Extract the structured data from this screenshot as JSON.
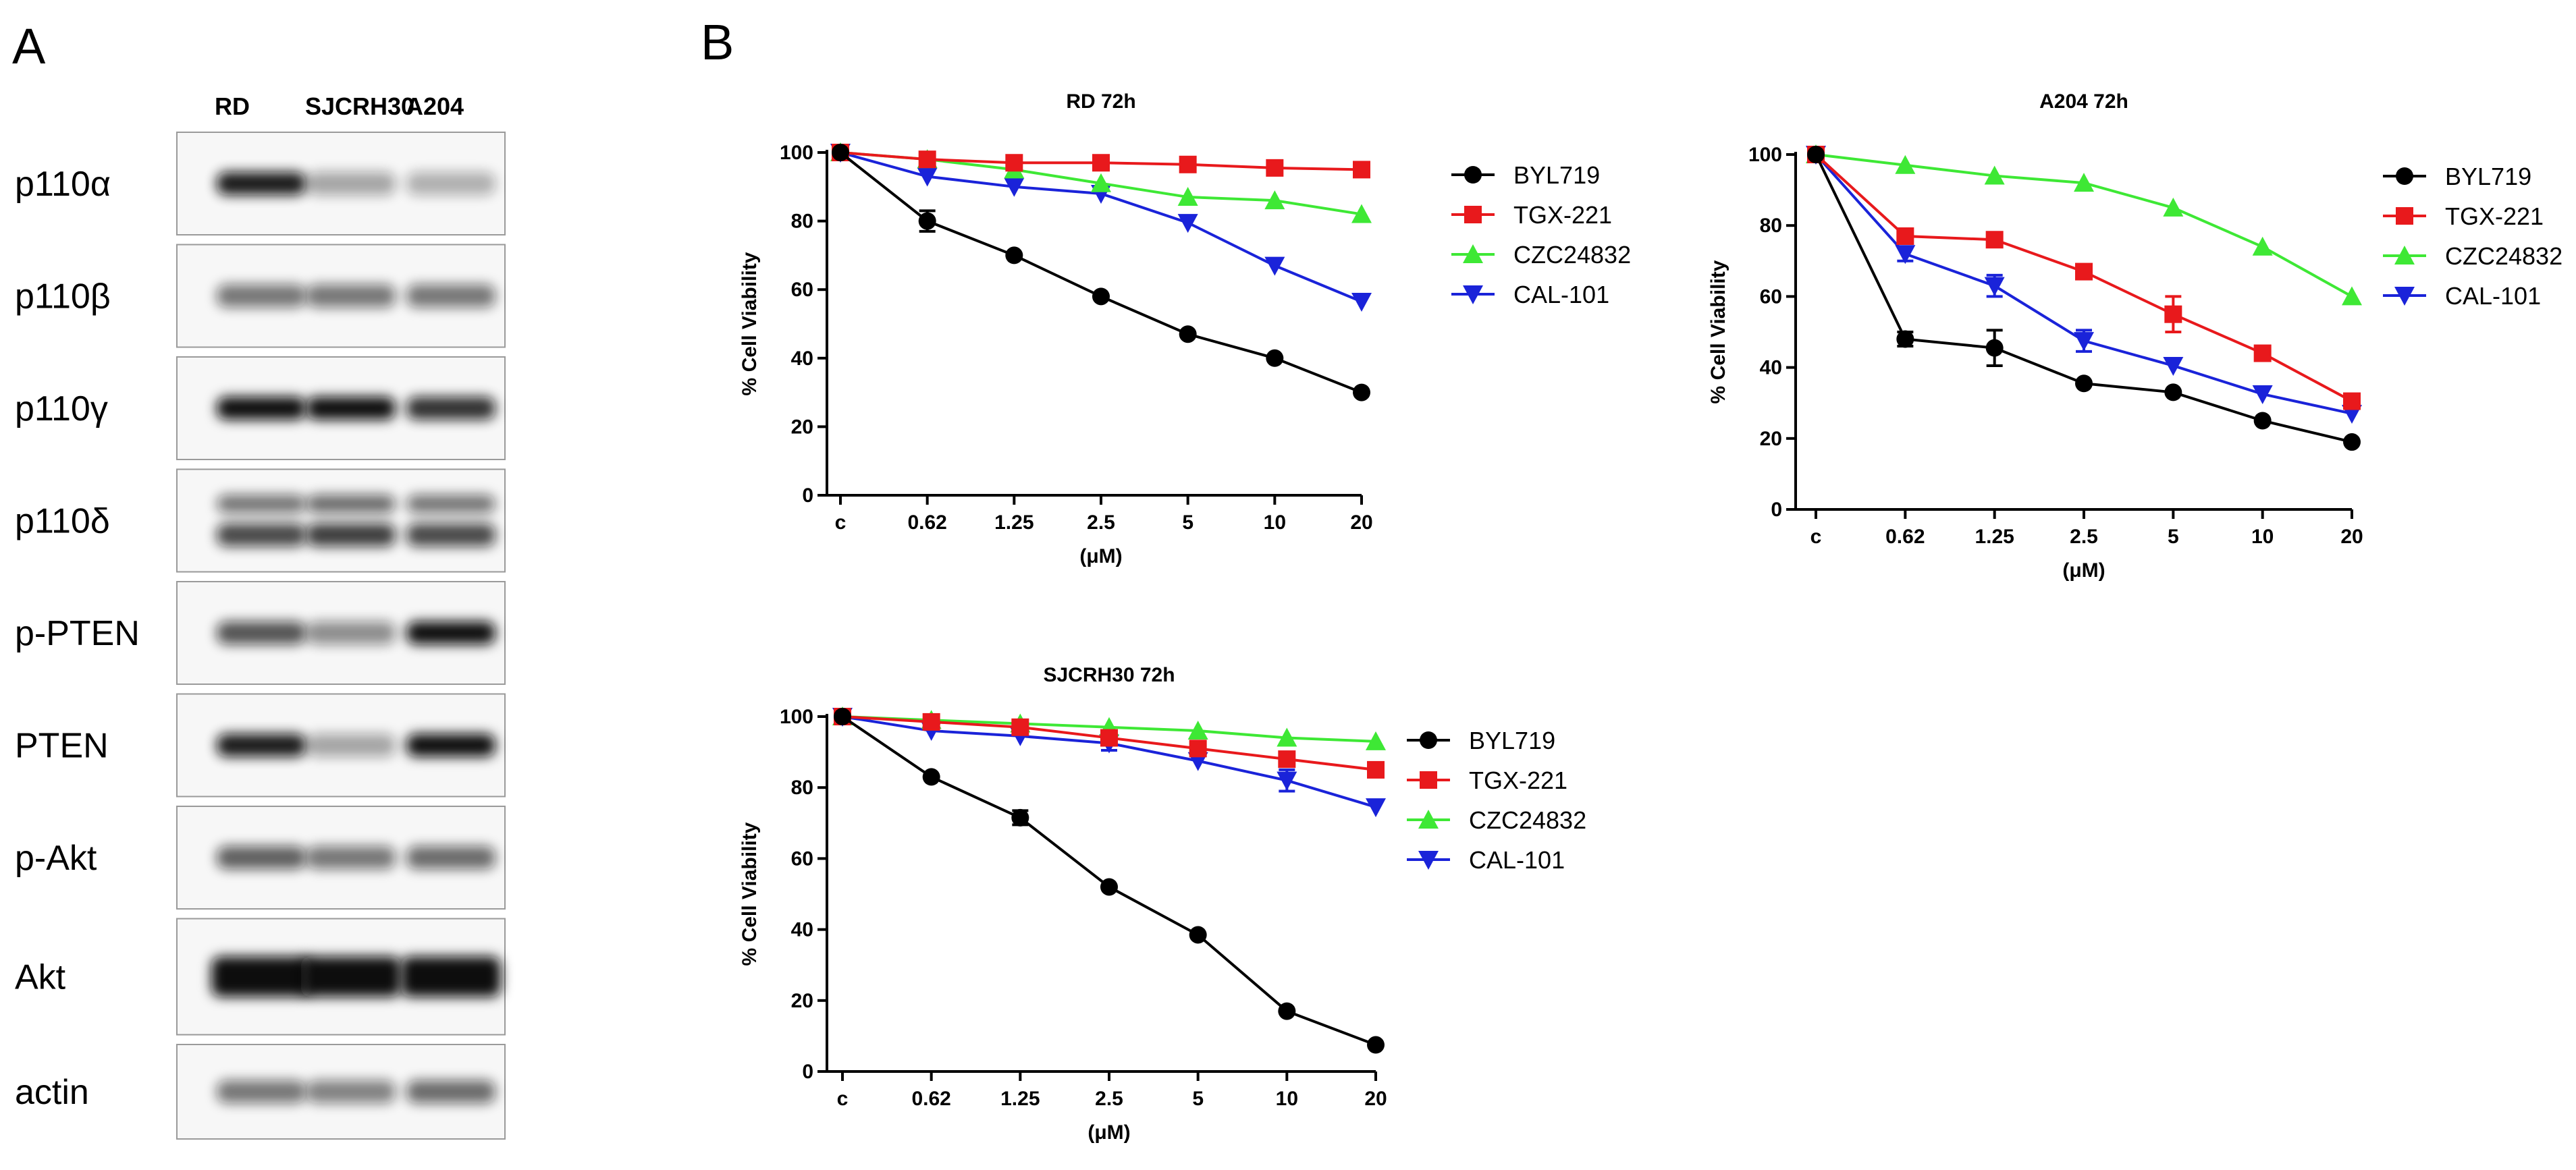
{
  "panels": {
    "a": "A",
    "b": "B"
  },
  "western_blot": {
    "lanes": [
      "RD",
      "SJCRH30",
      "A204"
    ],
    "rows": [
      {
        "label": "p110α",
        "bands": [
          0.95,
          0.35,
          0.3
        ],
        "double": false
      },
      {
        "label": "p110β",
        "bands": [
          0.55,
          0.55,
          0.55
        ],
        "double": false
      },
      {
        "label": "p110γ",
        "bands": [
          1.0,
          1.0,
          0.85
        ],
        "double": false
      },
      {
        "label": "p110δ",
        "bands": [
          0.75,
          0.8,
          0.75
        ],
        "double": true
      },
      {
        "label": "p-PTEN",
        "bands": [
          0.7,
          0.45,
          1.0
        ],
        "double": false
      },
      {
        "label": "PTEN",
        "bands": [
          0.95,
          0.35,
          1.0
        ],
        "double": false
      },
      {
        "label": "p-Akt",
        "bands": [
          0.65,
          0.55,
          0.6
        ],
        "double": false
      },
      {
        "label": "Akt",
        "bands": [
          1.0,
          1.0,
          1.0
        ],
        "double": false
      },
      {
        "label": "actin",
        "bands": [
          0.55,
          0.5,
          0.6
        ],
        "double": false
      }
    ]
  },
  "legend_entries": [
    "BYL719",
    "TGX-221",
    "CZC24832",
    "CAL-101"
  ],
  "colors": {
    "BYL719": "#000000",
    "TGX-221": "#e8191c",
    "CZC24832": "#3ee835",
    "CAL-101": "#1a23d9"
  },
  "chart_data": [
    {
      "type": "line",
      "title": "RD 72h",
      "categories": [
        "c",
        "0.62",
        "1.25",
        "2.5",
        "5",
        "10",
        "20"
      ],
      "xlabel": "(μM)",
      "ylabel": "% Cell Viability",
      "ylim": [
        0,
        100
      ],
      "yticks": [
        "0",
        "20",
        "40",
        "60",
        "80",
        "100"
      ],
      "series": [
        {
          "name": "BYL719",
          "values": [
            100,
            80,
            70,
            58,
            47,
            40,
            30
          ],
          "errors": [
            0,
            3,
            0,
            0,
            0,
            0,
            0
          ]
        },
        {
          "name": "TGX-221",
          "values": [
            100,
            98,
            97,
            97,
            96.5,
            95.5,
            95
          ],
          "errors": [
            0,
            0,
            0,
            0,
            0,
            0,
            0
          ]
        },
        {
          "name": "CZC24832",
          "values": [
            100,
            98,
            95,
            91,
            87,
            86,
            82
          ],
          "errors": [
            0,
            0,
            0,
            0,
            0,
            0,
            0
          ]
        },
        {
          "name": "CAL-101",
          "values": [
            100,
            93,
            90,
            88,
            79.5,
            67,
            56.5
          ],
          "errors": [
            0,
            0,
            0,
            0,
            0,
            0,
            0
          ]
        }
      ]
    },
    {
      "type": "line",
      "title": "A204 72h",
      "categories": [
        "c",
        "0.62",
        "1.25",
        "2.5",
        "5",
        "10",
        "20"
      ],
      "xlabel": "(μM)",
      "ylabel": "% Cell Viability",
      "ylim": [
        0,
        100
      ],
      "yticks": [
        "0",
        "20",
        "40",
        "60",
        "80",
        "100"
      ],
      "series": [
        {
          "name": "BYL719",
          "values": [
            100,
            48,
            45.5,
            35.5,
            33,
            25,
            19
          ],
          "errors": [
            0,
            2,
            5,
            0,
            0,
            0,
            0
          ]
        },
        {
          "name": "TGX-221",
          "values": [
            100,
            77,
            76,
            67,
            55,
            44,
            30.5
          ],
          "errors": [
            0,
            2,
            0,
            2,
            5,
            0,
            0
          ]
        },
        {
          "name": "CZC24832",
          "values": [
            100,
            97,
            94,
            92,
            85,
            74,
            60
          ],
          "errors": [
            0,
            0,
            0,
            0,
            0,
            0,
            0
          ]
        },
        {
          "name": "CAL-101",
          "values": [
            100,
            72,
            63,
            47.5,
            40.5,
            32.5,
            27
          ],
          "errors": [
            0,
            2,
            3,
            3,
            0,
            0,
            0
          ]
        }
      ]
    },
    {
      "type": "line",
      "title": "SJCRH30 72h",
      "categories": [
        "c",
        "0.62",
        "1.25",
        "2.5",
        "5",
        "10",
        "20"
      ],
      "xlabel": "(μM)",
      "ylabel": "% Cell Viability",
      "ylim": [
        0,
        100
      ],
      "yticks": [
        "0",
        "20",
        "40",
        "60",
        "80",
        "100"
      ],
      "series": [
        {
          "name": "BYL719",
          "values": [
            100,
            83,
            71.5,
            52,
            38.5,
            17,
            7.5
          ],
          "errors": [
            0,
            0,
            2,
            0,
            0,
            0,
            0
          ]
        },
        {
          "name": "TGX-221",
          "values": [
            100,
            98.5,
            97,
            94,
            91,
            88,
            85
          ],
          "errors": [
            0,
            0,
            0,
            0,
            0,
            0,
            0
          ]
        },
        {
          "name": "CZC24832",
          "values": [
            100,
            99,
            98,
            97,
            96,
            94,
            93
          ],
          "errors": [
            0,
            0,
            0,
            0,
            0,
            0,
            0
          ]
        },
        {
          "name": "CAL-101",
          "values": [
            100,
            96,
            94.5,
            92.5,
            87.5,
            82,
            74.5
          ],
          "errors": [
            0,
            0,
            0,
            2,
            0,
            3,
            0
          ]
        }
      ]
    }
  ]
}
